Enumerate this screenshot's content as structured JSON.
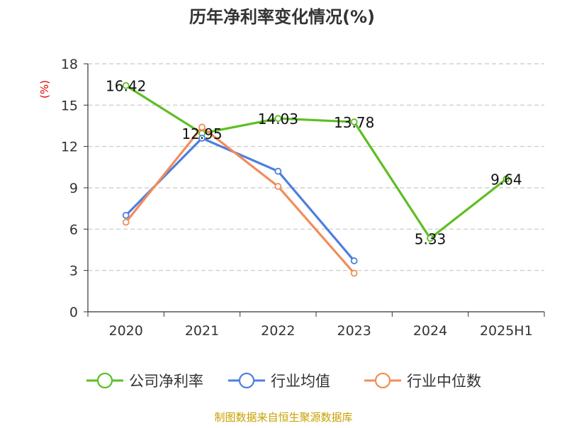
{
  "chart_data": {
    "type": "line",
    "title": "历年净利率变化情况(%)",
    "ylabel": "(%)",
    "xlabel": "",
    "categories": [
      "2020",
      "2021",
      "2022",
      "2023",
      "2024",
      "2025H1"
    ],
    "ylim": [
      0,
      18
    ],
    "yticks": [
      0,
      3,
      6,
      9,
      12,
      15,
      18
    ],
    "grid": true,
    "legend_position": "bottom",
    "series": [
      {
        "name": "公司净利率",
        "color": "#5cbf22",
        "values": [
          16.42,
          12.95,
          14.03,
          13.78,
          5.33,
          9.64
        ],
        "labels": [
          "16.42",
          "12.95",
          "14.03",
          "13.78",
          "5.33",
          "9.64"
        ]
      },
      {
        "name": "行业均值",
        "color": "#4e7fde",
        "values": [
          7.0,
          12.6,
          10.2,
          3.7,
          null,
          null
        ]
      },
      {
        "name": "行业中位数",
        "color": "#f28d5a",
        "values": [
          6.5,
          13.4,
          9.1,
          2.8,
          null,
          null
        ]
      }
    ]
  },
  "source": "制图数据来自恒生聚源数据库"
}
